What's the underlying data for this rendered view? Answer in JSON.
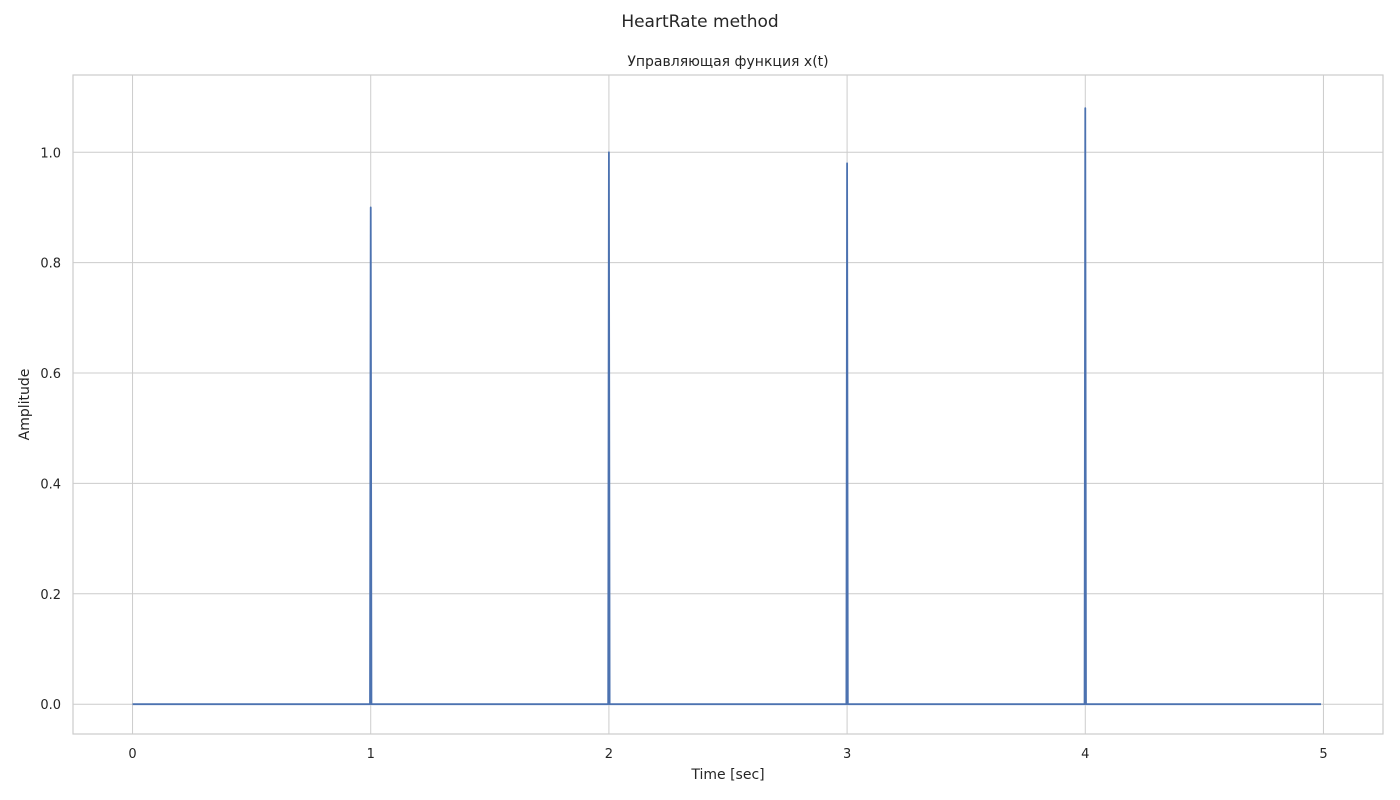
{
  "figure": {
    "suptitle": "HeartRate method"
  },
  "chart_data": {
    "type": "line",
    "title": "Управляющая функция x(t)",
    "xlabel": "Time [sec]",
    "ylabel": "Amplitude",
    "xlim": [
      -0.25,
      5.25
    ],
    "ylim": [
      -0.054,
      1.14
    ],
    "xticks": [
      0,
      1,
      2,
      3,
      4,
      5
    ],
    "xtick_labels": [
      "0",
      "1",
      "2",
      "3",
      "4",
      "5"
    ],
    "yticks": [
      0.0,
      0.2,
      0.4,
      0.6,
      0.8,
      1.0
    ],
    "ytick_labels": [
      "0.0",
      "0.2",
      "0.4",
      "0.6",
      "0.8",
      "1.0"
    ],
    "grid": true,
    "color": "#4c72b0",
    "series": [
      {
        "x": [
          0,
          0.997,
          1.0,
          1.003,
          1.997,
          2.0,
          2.003,
          2.997,
          3.0,
          3.003,
          3.997,
          4.0,
          4.003,
          4.99
        ],
        "y": [
          0,
          0,
          0.9,
          0,
          0,
          1.0,
          0,
          0,
          0.98,
          0,
          0,
          1.08,
          0,
          0
        ]
      }
    ]
  }
}
